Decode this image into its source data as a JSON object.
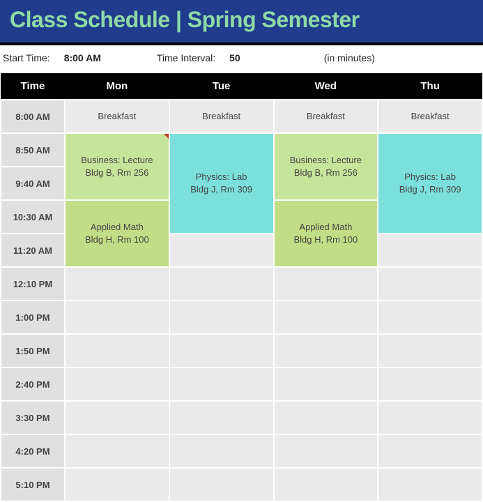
{
  "title": "Class Schedule | Spring Semester",
  "info": {
    "start_time_label": "Start Time:",
    "start_time_value": "8:00 AM",
    "interval_label": "Time Interval:",
    "interval_value": "50",
    "note": "(in minutes)"
  },
  "colors": {
    "title_bg": "#1f3d8c",
    "title_fg": "#8fd9a8",
    "header_bg": "#000000",
    "header_fg": "#ffffff",
    "time_col_bg": "#e0e0e0",
    "empty_bg": "#eaeaea",
    "breakfast_bg": "#eaeaea",
    "business_bg": "#c7e59a",
    "physics_bg": "#7be0db",
    "math_bg": "#c1de86"
  },
  "headers": {
    "time": "Time",
    "mon": "Mon",
    "tue": "Tue",
    "wed": "Wed",
    "thu": "Thu"
  },
  "times": [
    "8:00 AM",
    "8:50 AM",
    "9:40 AM",
    "10:30 AM",
    "11:20 AM",
    "12:10 PM",
    "1:00 PM",
    "1:50 PM",
    "2:40 PM",
    "3:30 PM",
    "4:20 PM",
    "5:10 PM"
  ],
  "blocks": {
    "breakfast": {
      "label": "Breakfast"
    },
    "business": {
      "line1": "Business: Lecture",
      "line2": "Bldg B, Rm 256"
    },
    "physics": {
      "line1": "Physics: Lab",
      "line2": "Bldg J, Rm 309"
    },
    "math": {
      "line1": "Applied Math",
      "line2": "Bldg H, Rm 100"
    }
  }
}
